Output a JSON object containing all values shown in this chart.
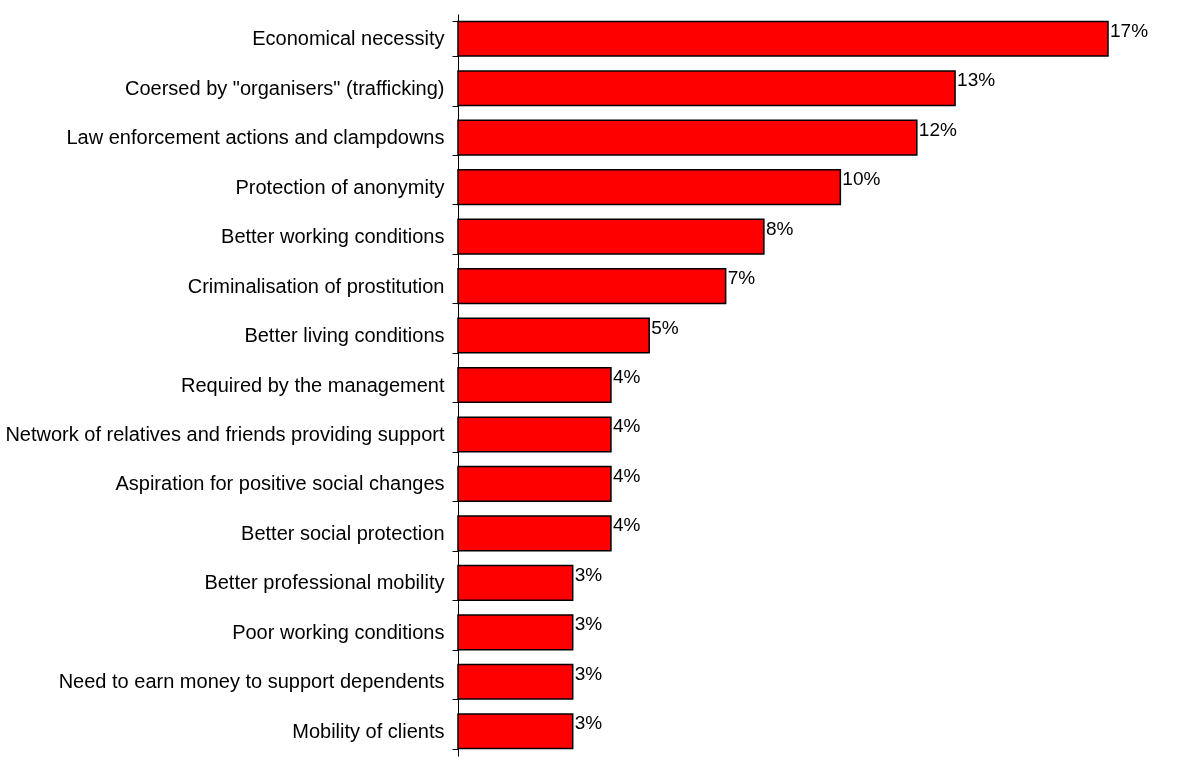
{
  "chart_data": {
    "type": "bar",
    "orientation": "horizontal",
    "categories": [
      "Economical necessity",
      "Coersed by \"organisers\" (trafficking)",
      "Law enforcement actions and clampdowns",
      "Protection of anonymity ",
      "Better working conditions",
      "Criminalisation of prostitution ",
      "Better living conditions",
      "Required by the management",
      "Network of relatives and friends providing support",
      "Aspiration for positive social changes ",
      "Better social protection",
      "Better professional mobility",
      "Poor working conditions",
      "Need to earn money to support dependents",
      "Mobility of clients"
    ],
    "values": [
      17,
      13,
      12,
      10,
      8,
      7,
      5,
      4,
      4,
      4,
      4,
      3,
      3,
      3,
      3
    ],
    "value_labels": [
      "17%",
      "13%",
      "12%",
      "10%",
      "8%",
      "7%",
      "5%",
      "4%",
      "4%",
      "4%",
      "4%",
      "3%",
      "3%",
      "3%",
      "3%"
    ],
    "color": "#ff0000",
    "grid": false
  }
}
